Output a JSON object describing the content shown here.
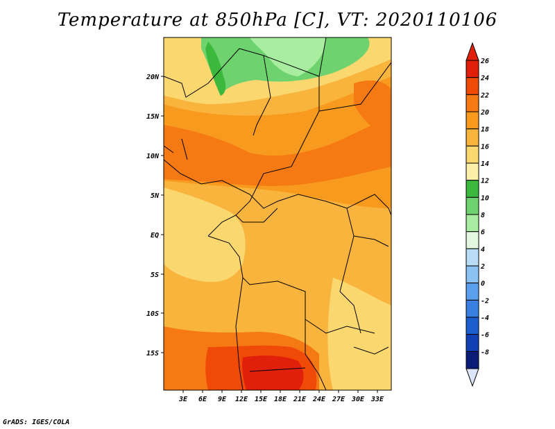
{
  "title": "Temperature at 850hPa [C], VT: 2020110106",
  "credit": "GrADS: IGES/COLA",
  "map": {
    "lat_labels": [
      "20N",
      "15N",
      "10N",
      "5N",
      "EQ",
      "5S",
      "10S",
      "15S"
    ],
    "lon_labels": [
      "3E",
      "6E",
      "9E",
      "12E",
      "15E",
      "18E",
      "21E",
      "24E",
      "27E",
      "30E",
      "33E"
    ]
  },
  "legend": {
    "labels": [
      "26",
      "24",
      "22",
      "20",
      "18",
      "16",
      "14",
      "12",
      "10",
      "8",
      "6",
      "4",
      "2",
      "0",
      "-2",
      "-4",
      "-6",
      "-8"
    ],
    "colors": [
      "#e0200b",
      "#f04a08",
      "#f57a14",
      "#f79a1e",
      "#f8b43c",
      "#fbd770",
      "#fef0a8",
      "#3cb83c",
      "#6ed36e",
      "#a8eda0",
      "#e2f6e0",
      "#b8dcf6",
      "#8cc2f2",
      "#5aa0ec",
      "#3a80e0",
      "#1e5fd0",
      "#1040b4",
      "#0a1b78"
    ],
    "top_color": "#e0200b",
    "bottom_color": "#dce4f8"
  }
}
